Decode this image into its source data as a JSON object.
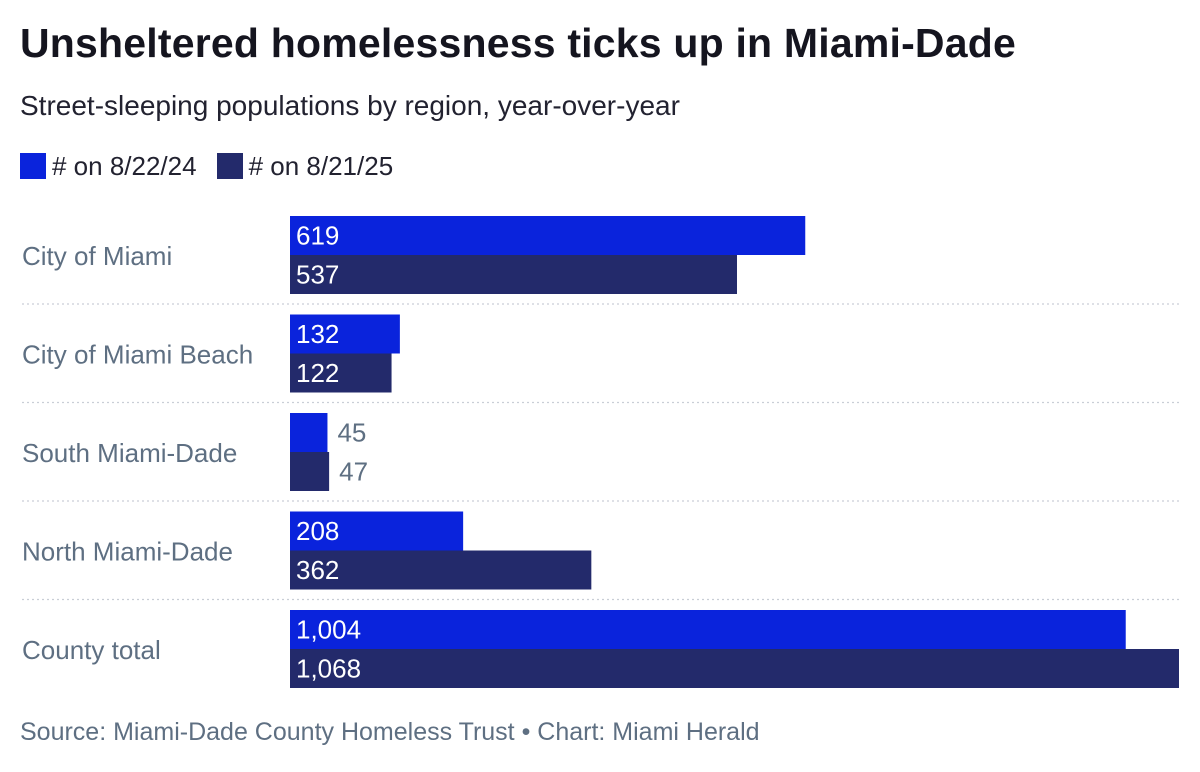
{
  "title": "Unsheltered homelessness ticks up in Miami-Dade",
  "subtitle": "Street-sleeping populations by region, year-over-year",
  "source": "Source: Miami-Dade County Homeless Trust • Chart: Miami Herald",
  "chart_data": {
    "type": "bar",
    "orientation": "horizontal",
    "title": "Unsheltered homelessness ticks up in Miami-Dade",
    "subtitle": "Street-sleeping populations by region, year-over-year",
    "categories": [
      "City of Miami",
      "City of Miami Beach",
      "South Miami-Dade",
      "North Miami-Dade",
      "County total"
    ],
    "series": [
      {
        "name": "# on 8/22/24",
        "color": "#0a23dc",
        "values": [
          619,
          132,
          45,
          208,
          1004
        ],
        "labels": [
          "619",
          "132",
          "45",
          "208",
          "1,004"
        ]
      },
      {
        "name": "# on 8/21/25",
        "color": "#232a6b",
        "values": [
          537,
          122,
          47,
          362,
          1068
        ],
        "labels": [
          "537",
          "122",
          "47",
          "362",
          "1,068"
        ]
      }
    ],
    "xlim": [
      0,
      1068
    ],
    "grid": false,
    "legend": "top-left",
    "value_labels": "inside-bar"
  }
}
